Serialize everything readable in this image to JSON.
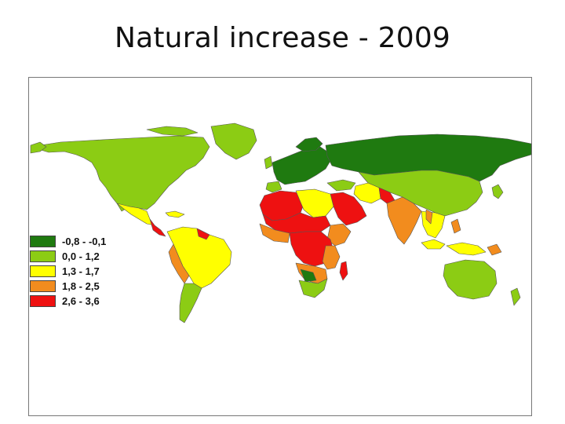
{
  "title": "Natural increase - 2009",
  "legend": {
    "items": [
      {
        "label": "-0,8 - -0,1",
        "color": "#1f7a10"
      },
      {
        "label": "0,0 - 1,2",
        "color": "#8ccc14"
      },
      {
        "label": "1,3 - 1,7",
        "color": "#ffff00"
      },
      {
        "label": "1,8 - 2,5",
        "color": "#f28c1e"
      },
      {
        "label": "2,6 - 3,6",
        "color": "#ee1111"
      }
    ]
  }
}
